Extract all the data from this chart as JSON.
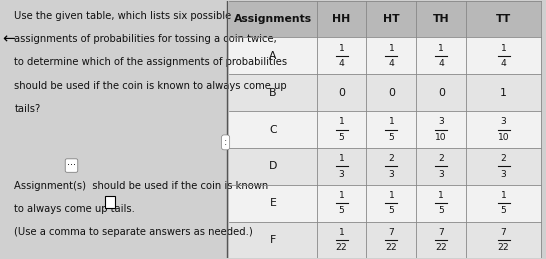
{
  "question_text": [
    "Use the given table, which lists six possible",
    "assignments of probabilities for tossing a coin twice,",
    "to determine which of the assignments of probabilities",
    "should be used if the coin is known to always come up",
    "tails?"
  ],
  "answer_text_1": "Assignment(s)  should be used if the coin is known",
  "answer_text_2": "to always come up tails.",
  "answer_text_3": "(Use a comma to separate answers as needed.)",
  "col_headers": [
    "Assignments",
    "HH",
    "HT",
    "TH",
    "TT"
  ],
  "rows": [
    {
      "label": "A",
      "values": [
        {
          "num": "1",
          "den": "4"
        },
        {
          "num": "1",
          "den": "4"
        },
        {
          "num": "1",
          "den": "4"
        },
        {
          "num": "1",
          "den": "4"
        }
      ]
    },
    {
      "label": "B",
      "values": [
        {
          "num": "0",
          "den": ""
        },
        {
          "num": "0",
          "den": ""
        },
        {
          "num": "0",
          "den": ""
        },
        {
          "num": "1",
          "den": ""
        }
      ]
    },
    {
      "label": "C",
      "values": [
        {
          "num": "1",
          "den": "5"
        },
        {
          "num": "1",
          "den": "5"
        },
        {
          "num": "3",
          "den": "10"
        },
        {
          "num": "3",
          "den": "10"
        }
      ]
    },
    {
      "label": "D",
      "values": [
        {
          "num": "1",
          "den": "3"
        },
        {
          "num": "2",
          "den": "3"
        },
        {
          "num": "2",
          "den": "3"
        },
        {
          "num": "2",
          "den": "3"
        }
      ]
    },
    {
      "label": "E",
      "values": [
        {
          "num": "1",
          "den": "5"
        },
        {
          "num": "1",
          "den": "5"
        },
        {
          "num": "1",
          "den": "5"
        },
        {
          "num": "1",
          "den": "5"
        }
      ]
    },
    {
      "label": "F",
      "values": [
        {
          "num": "1",
          "den": "22"
        },
        {
          "num": "7",
          "den": "22"
        },
        {
          "num": "7",
          "den": "22"
        },
        {
          "num": "7",
          "den": "22"
        }
      ]
    }
  ],
  "bg_color": "#d0d0d0",
  "header_bg": "#b8b8b8",
  "text_color": "#111111",
  "font_size_question": 7.2,
  "font_size_table": 7.8
}
